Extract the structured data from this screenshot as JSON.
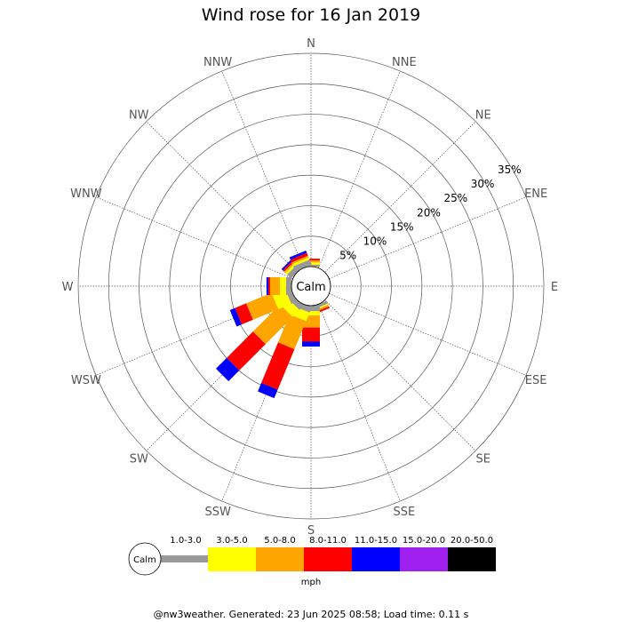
{
  "chart_data": {
    "type": "windrose",
    "title": "Wind rose for 16 Jan 2019",
    "directions": [
      "N",
      "NNE",
      "NE",
      "ENE",
      "E",
      "ESE",
      "SE",
      "SSE",
      "S",
      "SSW",
      "SW",
      "WSW",
      "W",
      "WNW",
      "NW",
      "NNW"
    ],
    "ring_labels": [
      "5%",
      "10%",
      "15%",
      "20%",
      "25%",
      "30%",
      "35%"
    ],
    "ring_max_percent": 35,
    "calm_label": "Calm",
    "speed_unit": "mph",
    "bins": [
      {
        "label": "1.0-3.0",
        "color": "#999999"
      },
      {
        "label": "3.0-5.0",
        "color": "#ffff00"
      },
      {
        "label": "5.0-8.0",
        "color": "#ffa500"
      },
      {
        "label": "8.0-11.0",
        "color": "#ff0000"
      },
      {
        "label": "11.0-15.0",
        "color": "#0000ff"
      },
      {
        "label": "15.0-20.0",
        "color": "#a020f0"
      },
      {
        "label": "20.0-50.0",
        "color": "#000000"
      }
    ],
    "series": [
      {
        "dir": "N",
        "values": [
          0.3,
          0.4,
          0.3,
          0.3,
          0,
          0,
          0
        ]
      },
      {
        "dir": "NNE",
        "values": [
          0,
          0,
          0,
          0,
          0,
          0,
          0
        ]
      },
      {
        "dir": "NE",
        "values": [
          0,
          0,
          0,
          0,
          0,
          0,
          0
        ]
      },
      {
        "dir": "ENE",
        "values": [
          0,
          0,
          0,
          0,
          0,
          0,
          0
        ]
      },
      {
        "dir": "E",
        "values": [
          0,
          0,
          0,
          0,
          0,
          0,
          0
        ]
      },
      {
        "dir": "ESE",
        "values": [
          0,
          0,
          0,
          0,
          0,
          0,
          0
        ]
      },
      {
        "dir": "SE",
        "values": [
          0,
          0,
          0,
          0,
          0,
          0,
          0
        ]
      },
      {
        "dir": "SSE",
        "values": [
          0.5,
          0.2,
          0.3,
          0.3,
          0,
          0,
          0
        ]
      },
      {
        "dir": "S",
        "values": [
          0.9,
          0.7,
          2.0,
          2.3,
          0.8,
          0,
          0
        ]
      },
      {
        "dir": "SSW",
        "values": [
          0.9,
          1.5,
          5.0,
          7.2,
          1.5,
          0,
          0
        ]
      },
      {
        "dir": "SW",
        "values": [
          0.9,
          1.6,
          6.3,
          6.1,
          2.5,
          0,
          0
        ]
      },
      {
        "dir": "WSW",
        "values": [
          0.9,
          2.3,
          4.5,
          2.0,
          0.9,
          0,
          0
        ]
      },
      {
        "dir": "W",
        "values": [
          0.9,
          1.0,
          1.6,
          0.3,
          0.3,
          0,
          0
        ]
      },
      {
        "dir": "WNW",
        "values": [
          0,
          0,
          0,
          0,
          0,
          0,
          0
        ]
      },
      {
        "dir": "NW",
        "values": [
          0.9,
          0.4,
          0.3,
          0.3,
          0.3,
          0,
          0
        ]
      },
      {
        "dir": "NNW",
        "values": [
          0.9,
          0.4,
          0.3,
          0.5,
          0.4,
          0,
          0
        ]
      }
    ]
  },
  "footer": "@nw3weather. Generated: 23 Jun 2025 08:58; Load time: 0.11 s"
}
